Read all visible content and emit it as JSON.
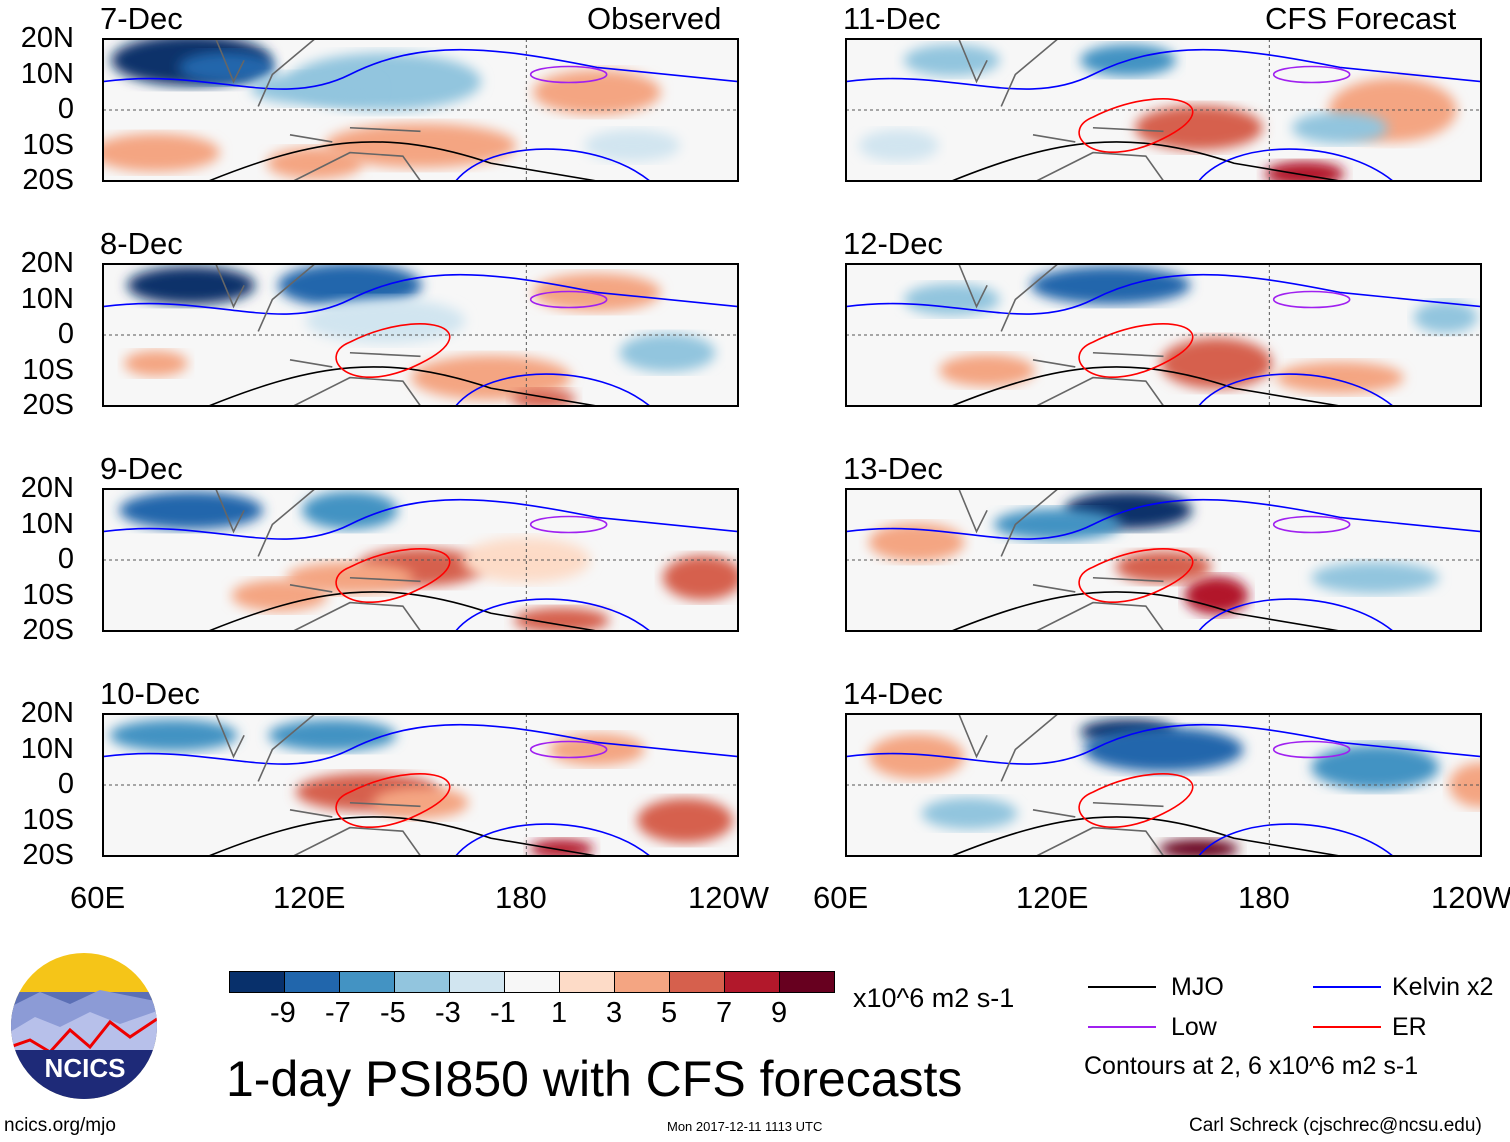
{
  "header": {
    "observed_label": "Observed",
    "forecast_label": "CFS Forecast"
  },
  "panels": {
    "left": [
      "7-Dec",
      "8-Dec",
      "9-Dec",
      "10-Dec"
    ],
    "right": [
      "11-Dec",
      "12-Dec",
      "13-Dec",
      "14-Dec"
    ]
  },
  "lat_ticks": [
    "20N",
    "10N",
    "0",
    "10S",
    "20S"
  ],
  "lon_ticks": [
    "60E",
    "120E",
    "180",
    "120W"
  ],
  "colorbar": {
    "labels": [
      "-9",
      "-7",
      "-5",
      "-3",
      "-1",
      "1",
      "3",
      "5",
      "7",
      "9"
    ],
    "colors": [
      "#08306b",
      "#2166ac",
      "#4393c3",
      "#92c5de",
      "#d1e5f0",
      "#f7f7f7",
      "#fddbc7",
      "#f4a582",
      "#d6604d",
      "#b2182b",
      "#67001f"
    ],
    "units": "x10^6 m2 s-1"
  },
  "legend": {
    "items": [
      {
        "label": "MJO",
        "color": "#000000"
      },
      {
        "label": "Kelvin x2",
        "color": "#0000ff"
      },
      {
        "label": "Low",
        "color": "#a020f0"
      },
      {
        "label": "ER",
        "color": "#ff0000"
      }
    ],
    "note": "Contours at 2, 6 x10^6 m2 s-1"
  },
  "title": "1-day PSI850 with CFS forecasts",
  "logo_text": "NCICS",
  "footer": {
    "url": "ncics.org/mjo",
    "timestamp": "Mon 2017-12-11 1113 UTC",
    "credit": "Carl Schreck (cjschrec@ncsu.edu)"
  }
}
